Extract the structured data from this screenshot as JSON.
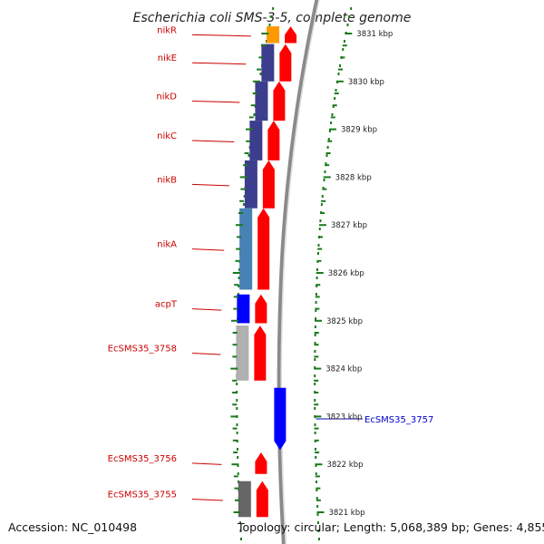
{
  "title": "Escherichia coli SMS-3-5, complete genome",
  "footer": {
    "accession": "Accession: NC_010498",
    "summary": "Topology: circular; Length: 5,068,389 bp; Genes: 4,855"
  },
  "colors": {
    "forward_gene": "#ff0000",
    "reverse_gene": "#0000ff",
    "label_left": "#cc0000",
    "label_right": "#0000cc",
    "tick": "#1a7a1a",
    "orange": "#ff9900",
    "dark_blue": "#3d3d8f",
    "steel_blue": "#4682b4",
    "gray": "#b0b0b0",
    "dark_gray": "#666666"
  },
  "ticks": [
    {
      "label": "3831 kbp",
      "kbp": 3831
    },
    {
      "label": "3830 kbp",
      "kbp": 3830
    },
    {
      "label": "3829 kbp",
      "kbp": 3829
    },
    {
      "label": "3828 kbp",
      "kbp": 3828
    },
    {
      "label": "3827 kbp",
      "kbp": 3827
    },
    {
      "label": "3826 kbp",
      "kbp": 3826
    },
    {
      "label": "3825 kbp",
      "kbp": 3825
    },
    {
      "label": "3824 kbp",
      "kbp": 3824
    },
    {
      "label": "3823 kbp",
      "kbp": 3823
    },
    {
      "label": "3822 kbp",
      "kbp": 3822
    },
    {
      "label": "3821 kbp",
      "kbp": 3821
    }
  ],
  "genes": [
    {
      "name": "nikR",
      "strand": "+",
      "start_kbp": 3830.8,
      "end_kbp": 3831.15,
      "cog": "orange"
    },
    {
      "name": "nikE",
      "strand": "+",
      "start_kbp": 3830.0,
      "end_kbp": 3830.78,
      "cog": "dark_blue"
    },
    {
      "name": "nikD",
      "strand": "+",
      "start_kbp": 3829.18,
      "end_kbp": 3830.0,
      "cog": "dark_blue"
    },
    {
      "name": "nikC",
      "strand": "+",
      "start_kbp": 3828.35,
      "end_kbp": 3829.18,
      "cog": "dark_blue"
    },
    {
      "name": "nikB",
      "strand": "+",
      "start_kbp": 3827.35,
      "end_kbp": 3828.35,
      "cog": "dark_blue"
    },
    {
      "name": "nikA",
      "strand": "+",
      "start_kbp": 3825.65,
      "end_kbp": 3827.35,
      "cog": "steel_blue"
    },
    {
      "name": "acpT",
      "strand": "+",
      "start_kbp": 3824.95,
      "end_kbp": 3825.55,
      "cog": "reverse_gene"
    },
    {
      "name": "EcSMS35_3758",
      "strand": "+",
      "start_kbp": 3823.75,
      "end_kbp": 3824.9,
      "cog": "gray"
    },
    {
      "name": "EcSMS35_3757",
      "strand": "-",
      "start_kbp": 3822.3,
      "end_kbp": 3823.6,
      "cog": "none"
    },
    {
      "name": "EcSMS35_3756",
      "strand": "+",
      "start_kbp": 3821.8,
      "end_kbp": 3822.25,
      "cog": "none"
    },
    {
      "name": "EcSMS35_3755",
      "strand": "+",
      "start_kbp": 3820.9,
      "end_kbp": 3821.65,
      "cog": "dark_gray"
    }
  ]
}
